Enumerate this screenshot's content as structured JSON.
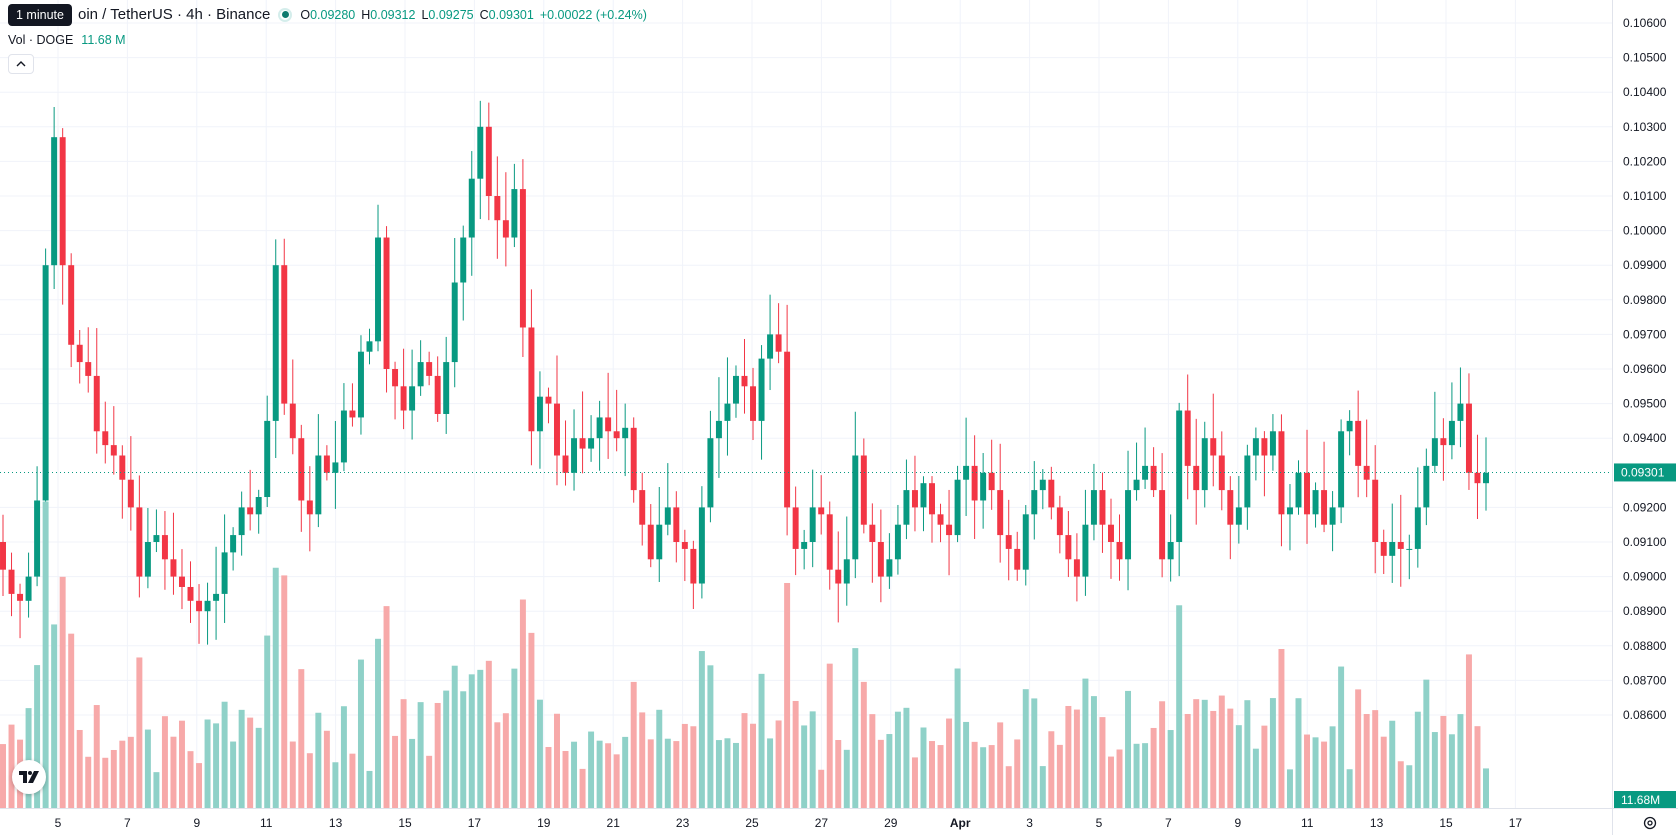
{
  "tooltip": "1 minute",
  "symbol": {
    "title": "oin / TetherUS · 4h · Binance",
    "status_color": "#0f7a6e"
  },
  "ohlc": {
    "o_label": "O",
    "o_value": "0.09280",
    "h_label": "H",
    "h_value": "0.09312",
    "l_label": "L",
    "l_value": "0.09275",
    "c_label": "C",
    "c_value": "0.09301",
    "change": "+0.00022 (+0.24%)"
  },
  "volume": {
    "label": "Vol · DOGE",
    "value": "11.68 M",
    "axis_badge": "11.68M"
  },
  "last_price": "0.09301",
  "colors": {
    "up": "#089981",
    "down": "#f23645",
    "up_vol": "#8fd1c8",
    "down_vol": "#f7a9a9",
    "grid": "#f0f3fa"
  },
  "price_axis": {
    "min": 0.0855,
    "max": 0.1064,
    "ticks": [
      "0.10600",
      "0.10500",
      "0.10400",
      "0.10300",
      "0.10200",
      "0.10100",
      "0.10000",
      "0.09900",
      "0.09800",
      "0.09700",
      "0.09600",
      "0.09500",
      "0.09400",
      "0.09200",
      "0.09100",
      "0.09000",
      "0.08900",
      "0.08800",
      "0.08700",
      "0.08600"
    ]
  },
  "time_axis": {
    "labels": [
      "5",
      "7",
      "9",
      "11",
      "13",
      "15",
      "17",
      "19",
      "21",
      "23",
      "25",
      "27",
      "29",
      "Apr",
      "3",
      "5",
      "7",
      "9",
      "11",
      "13",
      "15",
      "17"
    ]
  },
  "icons": {
    "logo": "tradingview-logo-icon",
    "settings": "gear-icon",
    "collapse": "chevron-up-icon"
  },
  "chart_data": {
    "type": "candlestick",
    "interval": "4h",
    "price_range": [
      0.0855,
      0.1064
    ],
    "volume_max_millions": 80,
    "closes": [
      0.0902,
      0.0895,
      0.0893,
      0.09,
      0.0922,
      0.099,
      0.1027,
      0.099,
      0.0967,
      0.0962,
      0.0958,
      0.0942,
      0.0938,
      0.0935,
      0.0928,
      0.092,
      0.09,
      0.091,
      0.0912,
      0.0905,
      0.09,
      0.0897,
      0.0893,
      0.089,
      0.0893,
      0.0895,
      0.0907,
      0.0912,
      0.092,
      0.0918,
      0.0923,
      0.0945,
      0.099,
      0.095,
      0.094,
      0.0922,
      0.0918,
      0.0935,
      0.093,
      0.0933,
      0.0948,
      0.0946,
      0.0965,
      0.0968,
      0.0998,
      0.096,
      0.0955,
      0.0948,
      0.0955,
      0.0962,
      0.0958,
      0.0947,
      0.0962,
      0.0985,
      0.0998,
      0.1015,
      0.103,
      0.101,
      0.1003,
      0.0998,
      0.1012,
      0.0972,
      0.0942,
      0.0952,
      0.095,
      0.0935,
      0.093,
      0.094,
      0.0937,
      0.094,
      0.0946,
      0.0942,
      0.094,
      0.0943,
      0.0925,
      0.0915,
      0.0905,
      0.0915,
      0.092,
      0.091,
      0.0908,
      0.0898,
      0.092,
      0.094,
      0.0945,
      0.095,
      0.0958,
      0.0955,
      0.0945,
      0.0963,
      0.097,
      0.0965,
      0.092,
      0.0908,
      0.091,
      0.092,
      0.0918,
      0.0902,
      0.0898,
      0.0905,
      0.0935,
      0.0915,
      0.091,
      0.09,
      0.0905,
      0.0915,
      0.0925,
      0.092,
      0.0927,
      0.0918,
      0.0915,
      0.0912,
      0.0928,
      0.0932,
      0.0922,
      0.093,
      0.0925,
      0.0912,
      0.0908,
      0.0902,
      0.0918,
      0.0925,
      0.0928,
      0.092,
      0.0912,
      0.0905,
      0.09,
      0.0915,
      0.0925,
      0.0915,
      0.091,
      0.0905,
      0.0925,
      0.0928,
      0.0932,
      0.0925,
      0.0905,
      0.091,
      0.0948,
      0.0932,
      0.0925,
      0.094,
      0.0935,
      0.0925,
      0.0915,
      0.092,
      0.0935,
      0.094,
      0.0935,
      0.0942,
      0.0918,
      0.092,
      0.093,
      0.0918,
      0.0925,
      0.0915,
      0.092,
      0.0942,
      0.0945,
      0.0932,
      0.0928,
      0.091,
      0.0906,
      0.091,
      0.0908,
      0.0908,
      0.092,
      0.0932,
      0.094,
      0.0938,
      0.0945,
      0.095,
      0.093,
      0.0927,
      0.093
    ]
  }
}
